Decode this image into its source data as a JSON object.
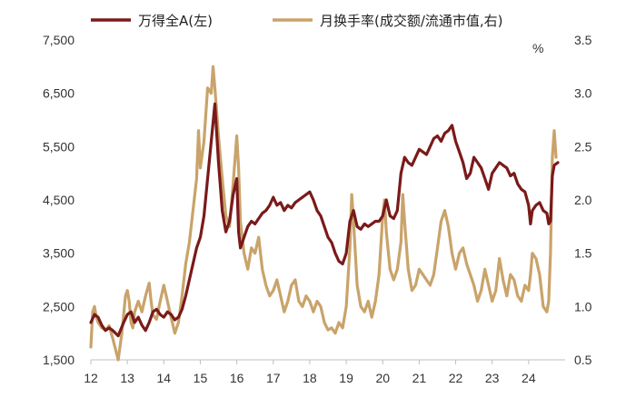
{
  "chart_data": {
    "type": "line",
    "title": "",
    "legend": {
      "placement": "top"
    },
    "grid": false,
    "x_axis": {
      "ticks": [
        "12",
        "13",
        "14",
        "15",
        "16",
        "17",
        "18",
        "19",
        "20",
        "21",
        "22",
        "23",
        "24"
      ],
      "range": [
        2012,
        2025
      ]
    },
    "y_left": {
      "ticks": [
        "1,500",
        "2,500",
        "3,500",
        "4,500",
        "5,500",
        "6,500",
        "7,500"
      ],
      "range": [
        1500,
        7500
      ]
    },
    "y_right": {
      "ticks": [
        "0.5",
        "1.0",
        "1.5",
        "2.0",
        "2.5",
        "3.0",
        "3.5"
      ],
      "range": [
        0.5,
        3.5
      ],
      "unit": "%"
    },
    "series": [
      {
        "name": "万得全A(左)",
        "axis": "left",
        "color": "#7a1a1a",
        "points": [
          [
            2012.0,
            2200
          ],
          [
            2012.1,
            2350
          ],
          [
            2012.2,
            2300
          ],
          [
            2012.3,
            2150
          ],
          [
            2012.4,
            2050
          ],
          [
            2012.5,
            2100
          ],
          [
            2012.6,
            2050
          ],
          [
            2012.75,
            1950
          ],
          [
            2012.9,
            2200
          ],
          [
            2013.0,
            2350
          ],
          [
            2013.1,
            2400
          ],
          [
            2013.2,
            2200
          ],
          [
            2013.3,
            2300
          ],
          [
            2013.4,
            2150
          ],
          [
            2013.5,
            2050
          ],
          [
            2013.6,
            2200
          ],
          [
            2013.7,
            2400
          ],
          [
            2013.8,
            2450
          ],
          [
            2013.9,
            2350
          ],
          [
            2014.0,
            2300
          ],
          [
            2014.1,
            2400
          ],
          [
            2014.2,
            2350
          ],
          [
            2014.3,
            2250
          ],
          [
            2014.4,
            2300
          ],
          [
            2014.5,
            2450
          ],
          [
            2014.6,
            2700
          ],
          [
            2014.7,
            3000
          ],
          [
            2014.8,
            3300
          ],
          [
            2014.9,
            3600
          ],
          [
            2015.0,
            3800
          ],
          [
            2015.1,
            4200
          ],
          [
            2015.2,
            4900
          ],
          [
            2015.3,
            5600
          ],
          [
            2015.4,
            6300
          ],
          [
            2015.5,
            5200
          ],
          [
            2015.6,
            4300
          ],
          [
            2015.7,
            3900
          ],
          [
            2015.8,
            4100
          ],
          [
            2015.9,
            4600
          ],
          [
            2016.0,
            4900
          ],
          [
            2016.05,
            3900
          ],
          [
            2016.1,
            3600
          ],
          [
            2016.2,
            3800
          ],
          [
            2016.3,
            4000
          ],
          [
            2016.4,
            4100
          ],
          [
            2016.5,
            4050
          ],
          [
            2016.6,
            4150
          ],
          [
            2016.7,
            4250
          ],
          [
            2016.8,
            4300
          ],
          [
            2016.9,
            4400
          ],
          [
            2017.0,
            4550
          ],
          [
            2017.1,
            4400
          ],
          [
            2017.2,
            4450
          ],
          [
            2017.3,
            4300
          ],
          [
            2017.4,
            4400
          ],
          [
            2017.5,
            4350
          ],
          [
            2017.6,
            4450
          ],
          [
            2017.7,
            4500
          ],
          [
            2017.8,
            4550
          ],
          [
            2017.9,
            4600
          ],
          [
            2018.0,
            4650
          ],
          [
            2018.1,
            4500
          ],
          [
            2018.2,
            4300
          ],
          [
            2018.3,
            4200
          ],
          [
            2018.4,
            4000
          ],
          [
            2018.5,
            3800
          ],
          [
            2018.6,
            3700
          ],
          [
            2018.7,
            3500
          ],
          [
            2018.8,
            3350
          ],
          [
            2018.9,
            3300
          ],
          [
            2019.0,
            3500
          ],
          [
            2019.1,
            4100
          ],
          [
            2019.2,
            4300
          ],
          [
            2019.3,
            4000
          ],
          [
            2019.4,
            3950
          ],
          [
            2019.5,
            4050
          ],
          [
            2019.6,
            4000
          ],
          [
            2019.7,
            4050
          ],
          [
            2019.8,
            4100
          ],
          [
            2019.9,
            4100
          ],
          [
            2020.0,
            4200
          ],
          [
            2020.1,
            4500
          ],
          [
            2020.2,
            4200
          ],
          [
            2020.3,
            4150
          ],
          [
            2020.4,
            4300
          ],
          [
            2020.5,
            5000
          ],
          [
            2020.6,
            5300
          ],
          [
            2020.7,
            5200
          ],
          [
            2020.8,
            5150
          ],
          [
            2020.9,
            5300
          ],
          [
            2021.0,
            5450
          ],
          [
            2021.1,
            5400
          ],
          [
            2021.2,
            5350
          ],
          [
            2021.3,
            5500
          ],
          [
            2021.4,
            5650
          ],
          [
            2021.5,
            5700
          ],
          [
            2021.6,
            5600
          ],
          [
            2021.7,
            5750
          ],
          [
            2021.8,
            5800
          ],
          [
            2021.9,
            5900
          ],
          [
            2022.0,
            5600
          ],
          [
            2022.1,
            5400
          ],
          [
            2022.2,
            5200
          ],
          [
            2022.3,
            4900
          ],
          [
            2022.4,
            5000
          ],
          [
            2022.5,
            5300
          ],
          [
            2022.6,
            5200
          ],
          [
            2022.7,
            5100
          ],
          [
            2022.8,
            4900
          ],
          [
            2022.9,
            4700
          ],
          [
            2023.0,
            5000
          ],
          [
            2023.1,
            5100
          ],
          [
            2023.2,
            5200
          ],
          [
            2023.3,
            5150
          ],
          [
            2023.4,
            5100
          ],
          [
            2023.5,
            4950
          ],
          [
            2023.6,
            5000
          ],
          [
            2023.7,
            4800
          ],
          [
            2023.8,
            4700
          ],
          [
            2023.9,
            4650
          ],
          [
            2024.0,
            4400
          ],
          [
            2024.05,
            4050
          ],
          [
            2024.1,
            4300
          ],
          [
            2024.2,
            4400
          ],
          [
            2024.3,
            4450
          ],
          [
            2024.4,
            4300
          ],
          [
            2024.5,
            4250
          ],
          [
            2024.55,
            4050
          ],
          [
            2024.6,
            4100
          ],
          [
            2024.65,
            4950
          ],
          [
            2024.7,
            5150
          ],
          [
            2024.8,
            5200
          ]
        ]
      },
      {
        "name": "月换手率(成交额/流通市值,右)",
        "axis": "right",
        "color": "#c9a36a",
        "points": [
          [
            2012.0,
            0.62
          ],
          [
            2012.05,
            0.95
          ],
          [
            2012.1,
            1.0
          ],
          [
            2012.15,
            0.9
          ],
          [
            2012.2,
            0.85
          ],
          [
            2012.3,
            0.8
          ],
          [
            2012.4,
            0.78
          ],
          [
            2012.5,
            0.82
          ],
          [
            2012.6,
            0.7
          ],
          [
            2012.75,
            0.5
          ],
          [
            2012.85,
            0.75
          ],
          [
            2012.95,
            1.1
          ],
          [
            2013.0,
            1.15
          ],
          [
            2013.05,
            1.05
          ],
          [
            2013.1,
            0.85
          ],
          [
            2013.15,
            0.8
          ],
          [
            2013.2,
            0.95
          ],
          [
            2013.3,
            1.05
          ],
          [
            2013.4,
            0.95
          ],
          [
            2013.5,
            1.1
          ],
          [
            2013.6,
            1.22
          ],
          [
            2013.65,
            1.05
          ],
          [
            2013.7,
            0.92
          ],
          [
            2013.8,
            0.88
          ],
          [
            2013.9,
            1.05
          ],
          [
            2014.0,
            1.2
          ],
          [
            2014.1,
            1.05
          ],
          [
            2014.2,
            0.9
          ],
          [
            2014.3,
            0.75
          ],
          [
            2014.4,
            0.85
          ],
          [
            2014.5,
            1.1
          ],
          [
            2014.6,
            1.4
          ],
          [
            2014.7,
            1.6
          ],
          [
            2014.8,
            1.9
          ],
          [
            2014.9,
            2.2
          ],
          [
            2014.95,
            2.65
          ],
          [
            2015.0,
            2.3
          ],
          [
            2015.1,
            2.55
          ],
          [
            2015.2,
            3.05
          ],
          [
            2015.3,
            3.0
          ],
          [
            2015.35,
            3.25
          ],
          [
            2015.4,
            3.05
          ],
          [
            2015.5,
            2.6
          ],
          [
            2015.6,
            2.2
          ],
          [
            2015.7,
            1.85
          ],
          [
            2015.8,
            1.75
          ],
          [
            2015.9,
            2.15
          ],
          [
            2016.0,
            2.6
          ],
          [
            2016.05,
            2.3
          ],
          [
            2016.1,
            1.8
          ],
          [
            2016.2,
            1.5
          ],
          [
            2016.3,
            1.35
          ],
          [
            2016.4,
            1.55
          ],
          [
            2016.5,
            1.5
          ],
          [
            2016.6,
            1.65
          ],
          [
            2016.7,
            1.35
          ],
          [
            2016.8,
            1.2
          ],
          [
            2016.9,
            1.1
          ],
          [
            2017.0,
            1.15
          ],
          [
            2017.1,
            1.25
          ],
          [
            2017.2,
            1.1
          ],
          [
            2017.3,
            0.95
          ],
          [
            2017.4,
            1.05
          ],
          [
            2017.5,
            1.2
          ],
          [
            2017.6,
            1.25
          ],
          [
            2017.7,
            1.05
          ],
          [
            2017.8,
            1.0
          ],
          [
            2017.9,
            1.1
          ],
          [
            2018.0,
            1.05
          ],
          [
            2018.1,
            0.95
          ],
          [
            2018.2,
            1.05
          ],
          [
            2018.3,
            1.0
          ],
          [
            2018.4,
            0.85
          ],
          [
            2018.5,
            0.78
          ],
          [
            2018.6,
            0.8
          ],
          [
            2018.7,
            0.75
          ],
          [
            2018.8,
            0.85
          ],
          [
            2018.9,
            0.8
          ],
          [
            2019.0,
            1.0
          ],
          [
            2019.1,
            1.55
          ],
          [
            2019.15,
            2.05
          ],
          [
            2019.2,
            1.8
          ],
          [
            2019.3,
            1.2
          ],
          [
            2019.4,
            1.0
          ],
          [
            2019.5,
            0.95
          ],
          [
            2019.6,
            1.05
          ],
          [
            2019.7,
            0.9
          ],
          [
            2019.8,
            1.05
          ],
          [
            2019.9,
            1.3
          ],
          [
            2020.0,
            1.85
          ],
          [
            2020.05,
            2.0
          ],
          [
            2020.1,
            1.7
          ],
          [
            2020.2,
            1.35
          ],
          [
            2020.3,
            1.25
          ],
          [
            2020.4,
            1.35
          ],
          [
            2020.5,
            1.6
          ],
          [
            2020.55,
            2.05
          ],
          [
            2020.6,
            1.8
          ],
          [
            2020.7,
            1.35
          ],
          [
            2020.8,
            1.15
          ],
          [
            2020.9,
            1.2
          ],
          [
            2021.0,
            1.35
          ],
          [
            2021.1,
            1.3
          ],
          [
            2021.2,
            1.25
          ],
          [
            2021.3,
            1.2
          ],
          [
            2021.4,
            1.3
          ],
          [
            2021.5,
            1.55
          ],
          [
            2021.6,
            1.8
          ],
          [
            2021.7,
            1.9
          ],
          [
            2021.8,
            1.75
          ],
          [
            2021.9,
            1.5
          ],
          [
            2022.0,
            1.35
          ],
          [
            2022.1,
            1.5
          ],
          [
            2022.2,
            1.55
          ],
          [
            2022.3,
            1.4
          ],
          [
            2022.4,
            1.3
          ],
          [
            2022.5,
            1.2
          ],
          [
            2022.6,
            1.05
          ],
          [
            2022.7,
            1.15
          ],
          [
            2022.8,
            1.35
          ],
          [
            2022.9,
            1.2
          ],
          [
            2023.0,
            1.05
          ],
          [
            2023.1,
            1.15
          ],
          [
            2023.2,
            1.45
          ],
          [
            2023.3,
            1.25
          ],
          [
            2023.4,
            1.1
          ],
          [
            2023.5,
            1.3
          ],
          [
            2023.6,
            1.25
          ],
          [
            2023.7,
            1.1
          ],
          [
            2023.8,
            1.05
          ],
          [
            2023.9,
            1.2
          ],
          [
            2024.0,
            1.15
          ],
          [
            2024.05,
            1.3
          ],
          [
            2024.1,
            1.5
          ],
          [
            2024.2,
            1.45
          ],
          [
            2024.3,
            1.3
          ],
          [
            2024.4,
            1.0
          ],
          [
            2024.5,
            0.95
          ],
          [
            2024.55,
            1.05
          ],
          [
            2024.6,
            1.5
          ],
          [
            2024.65,
            2.4
          ],
          [
            2024.7,
            2.65
          ],
          [
            2024.75,
            2.4
          ]
        ]
      }
    ]
  }
}
